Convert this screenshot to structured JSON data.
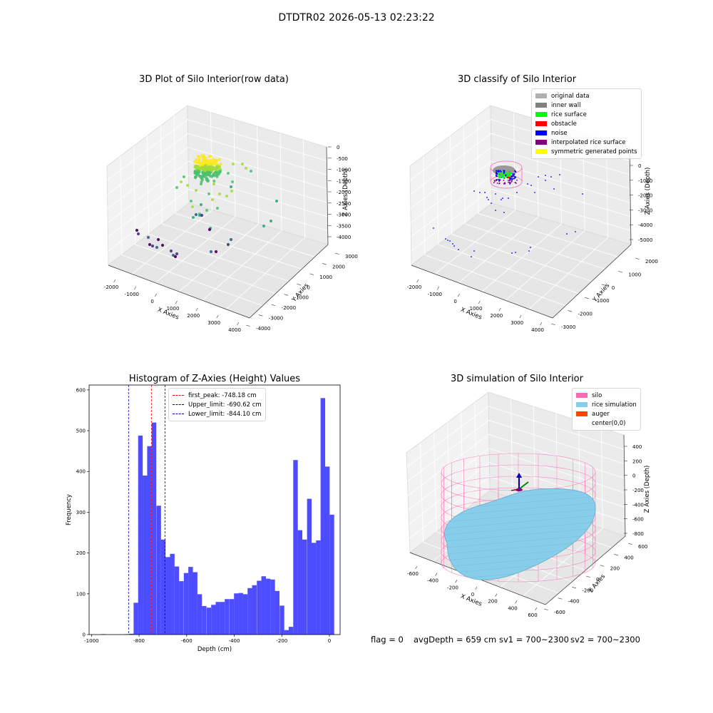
{
  "suptitle": "DTDTR02 2026-05-13 02:23:22",
  "status": {
    "flag": "flag = 0",
    "avg_depth": "avgDepth = 659 cm",
    "sv1": "sv1 = 700~2300",
    "sv2": "sv2 = 700~2300"
  },
  "chart_data": [
    {
      "type": "scatter",
      "title": "3D Plot of Silo Interior(row data)",
      "xlabel": "X Axies",
      "ylabel": "Y Axies",
      "zlabel": "Z Axies (Depth)",
      "xticks": [
        "-2000",
        "-1000",
        "0",
        "1000",
        "2000",
        "3000",
        "4000"
      ],
      "yticks": [
        "-4000",
        "-3000",
        "-2000",
        "-1000",
        "0",
        "1000",
        "2000",
        "3000"
      ],
      "zticks": [
        "0",
        "-500",
        "-1000",
        "-1500",
        "-2000",
        "-2500",
        "-3000",
        "-3500",
        "-4000"
      ],
      "colormap": "viridis",
      "grid": true
    },
    {
      "type": "scatter",
      "title": "3D classify of Silo Interior",
      "xlabel": "X Axies",
      "ylabel": "Y Axies",
      "zlabel": "Z Axies (Depth)",
      "xticks": [
        "-2000",
        "-1000",
        "0",
        "1000",
        "2000",
        "3000",
        "4000"
      ],
      "yticks": [
        "-3000",
        "-2000",
        "-1000",
        "0",
        "1000",
        "2000"
      ],
      "zticks": [
        "0",
        "-1000",
        "-2000",
        "-3000",
        "-4000",
        "-5000"
      ],
      "legend_position": "top-right",
      "legend": [
        {
          "label": "original data",
          "color": "#b0b0b0"
        },
        {
          "label": "inner wall",
          "color": "#808080"
        },
        {
          "label": "rice surface",
          "color": "#00ff00"
        },
        {
          "label": "obstacle",
          "color": "#ff0000"
        },
        {
          "label": "noise",
          "color": "#0000ff"
        },
        {
          "label": "interpolated rice surface",
          "color": "#800080"
        },
        {
          "label": "symmetric generated points",
          "color": "#ffff00"
        }
      ],
      "grid": true
    },
    {
      "type": "bar",
      "title": "Histogram of Z-Axies (Height) Values",
      "xlabel": "Depth (cm)",
      "ylabel": "Frequency",
      "xlim": [
        -1010,
        45
      ],
      "ylim": [
        0,
        612
      ],
      "xticks": [
        -1000,
        -800,
        -600,
        -400,
        -200,
        0
      ],
      "yticks": [
        0,
        100,
        200,
        300,
        400,
        500,
        600
      ],
      "bar_color": "#4d4dff",
      "bin_width": 19.2,
      "bins": [
        {
          "x": -960,
          "value": 1
        },
        {
          "x": -860,
          "value": 1
        },
        {
          "x": -842,
          "value": 2
        },
        {
          "x": -823,
          "value": 78
        },
        {
          "x": -804,
          "value": 488
        },
        {
          "x": -785,
          "value": 390
        },
        {
          "x": -766,
          "value": 462
        },
        {
          "x": -747,
          "value": 520
        },
        {
          "x": -727,
          "value": 316
        },
        {
          "x": -708,
          "value": 233
        },
        {
          "x": -689,
          "value": 190
        },
        {
          "x": -670,
          "value": 198
        },
        {
          "x": -651,
          "value": 167
        },
        {
          "x": -632,
          "value": 131
        },
        {
          "x": -612,
          "value": 151
        },
        {
          "x": -593,
          "value": 166
        },
        {
          "x": -574,
          "value": 153
        },
        {
          "x": -555,
          "value": 99
        },
        {
          "x": -536,
          "value": 70
        },
        {
          "x": -516,
          "value": 66
        },
        {
          "x": -497,
          "value": 73
        },
        {
          "x": -478,
          "value": 80
        },
        {
          "x": -459,
          "value": 80
        },
        {
          "x": -440,
          "value": 87
        },
        {
          "x": -420,
          "value": 87
        },
        {
          "x": -401,
          "value": 101
        },
        {
          "x": -382,
          "value": 102
        },
        {
          "x": -363,
          "value": 99
        },
        {
          "x": -344,
          "value": 114
        },
        {
          "x": -325,
          "value": 121
        },
        {
          "x": -305,
          "value": 132
        },
        {
          "x": -286,
          "value": 143
        },
        {
          "x": -267,
          "value": 137
        },
        {
          "x": -248,
          "value": 135
        },
        {
          "x": -229,
          "value": 107
        },
        {
          "x": -209,
          "value": 71
        },
        {
          "x": -190,
          "value": 11
        },
        {
          "x": -171,
          "value": 19
        },
        {
          "x": -152,
          "value": 428
        },
        {
          "x": -133,
          "value": 256
        },
        {
          "x": -114,
          "value": 233
        },
        {
          "x": -94,
          "value": 333
        },
        {
          "x": -75,
          "value": 225
        },
        {
          "x": -56,
          "value": 231
        },
        {
          "x": -37,
          "value": 580
        },
        {
          "x": -18,
          "value": 412
        },
        {
          "x": 1,
          "value": 294
        }
      ],
      "lines": [
        {
          "label": "first_peak: -748.18 cm",
          "x": -748.18,
          "color": "#ff0000"
        },
        {
          "label": "Upper_limit: -690.62 cm",
          "x": -690.62,
          "color": "#0000aa"
        },
        {
          "label": "Lower_limit: -844.10 cm",
          "x": -844.1,
          "color": "#0000aa"
        }
      ],
      "legend_position": "top-center"
    },
    {
      "type": "surface",
      "title": "3D simulation of Silo Interior",
      "xlabel": "X Axies",
      "ylabel": "Y Axies",
      "zlabel": "Z Axies (Depth)",
      "xticks": [
        "-600",
        "-400",
        "-200",
        "0",
        "200",
        "400",
        "600"
      ],
      "yticks": [
        "-600",
        "-400",
        "-200",
        "0",
        "200",
        "400",
        "600"
      ],
      "zticks": [
        "400",
        "200",
        "0",
        "-200",
        "-400",
        "-600",
        "-800"
      ],
      "legend_position": "top-right",
      "legend": [
        {
          "label": "silo",
          "color": "#ff69b4"
        },
        {
          "label": "rice simulation",
          "color": "#87ceeb"
        },
        {
          "label": "auger",
          "color": "#ff4500"
        },
        {
          "label": "center(0,0)",
          "color": "#ffffff"
        }
      ],
      "grid": true
    }
  ]
}
